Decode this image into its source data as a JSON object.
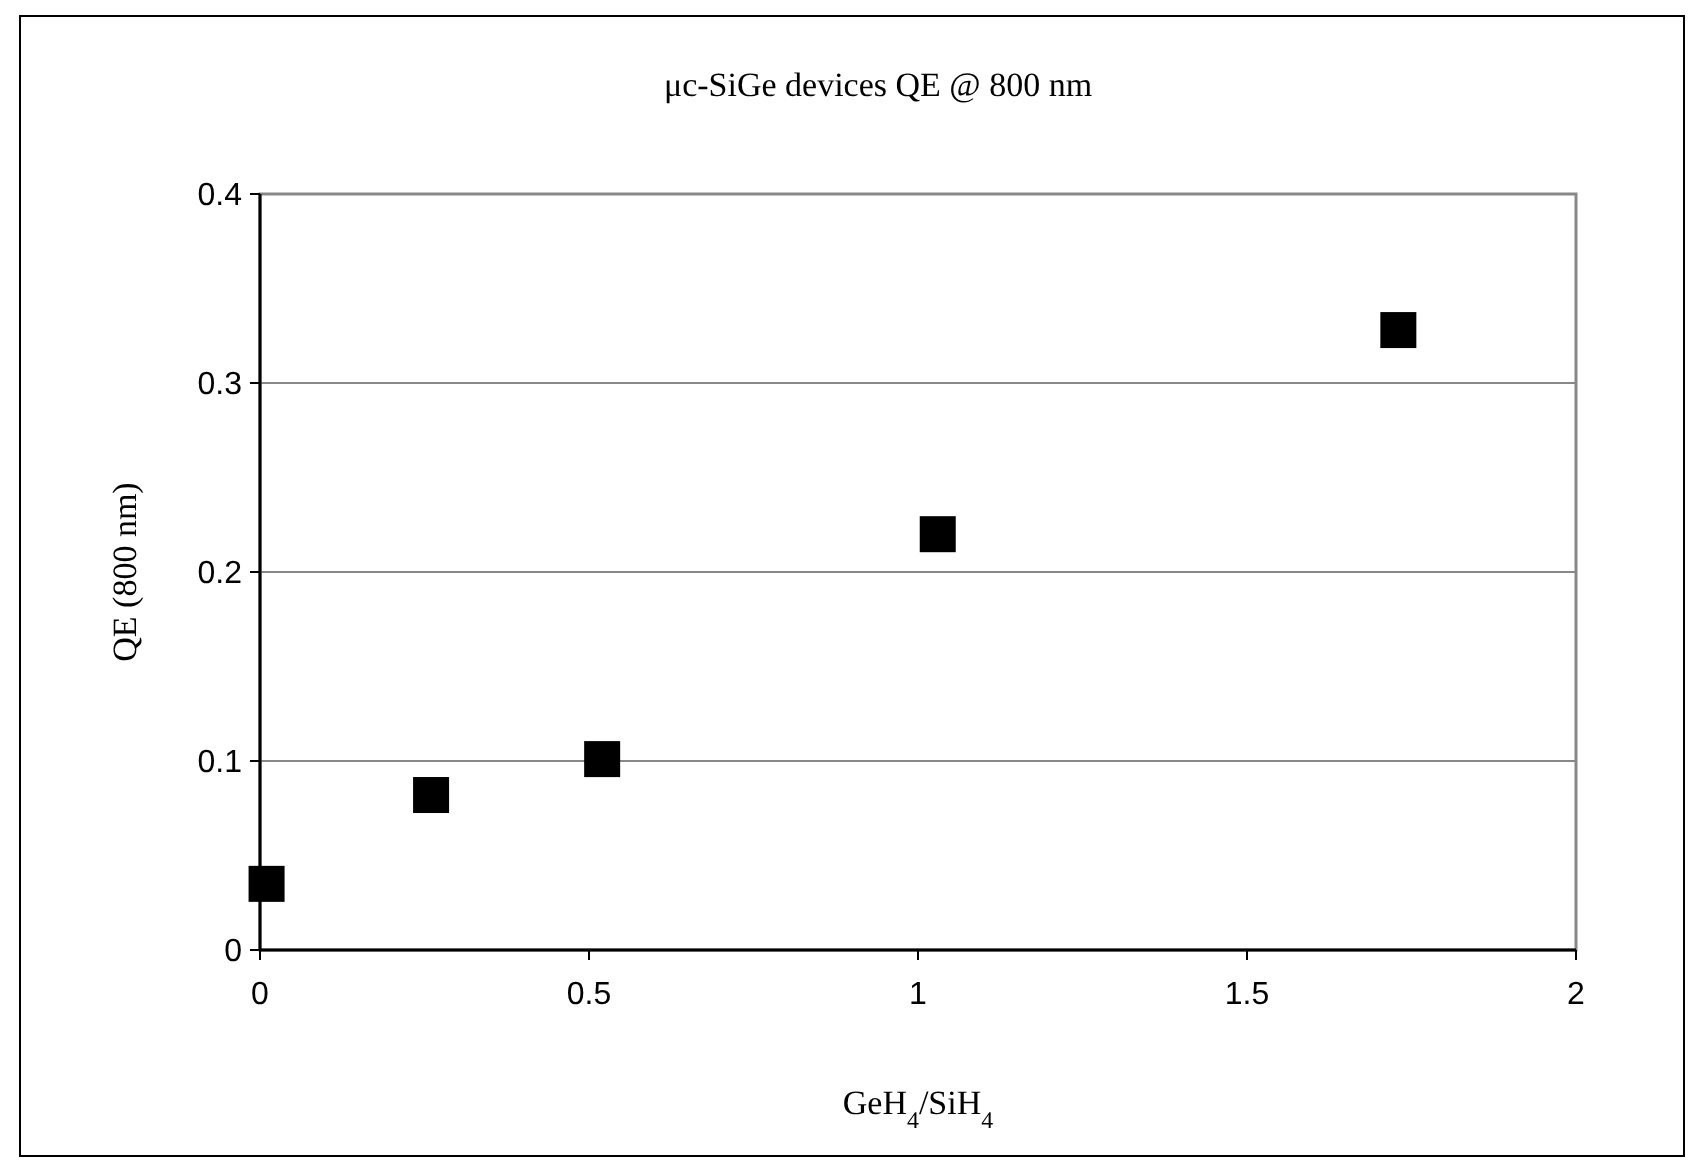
{
  "chart_data": {
    "type": "scatter",
    "title": "μc-SiGe devices QE @ 800 nm",
    "xlabel": "GeH$_{4}$/SiH$_{4}$",
    "ylabel": "QE (800 nm)",
    "x": [
      0.01,
      0.26,
      0.52,
      1.03,
      1.73
    ],
    "series": [
      {
        "color": "#000000",
        "values": [
          0.035,
          0.082,
          0.101,
          0.22,
          0.328
        ]
      }
    ],
    "xlim": [
      0,
      2
    ],
    "xticks": [
      0,
      0.5,
      1,
      1.5,
      2
    ],
    "ylim": [
      0,
      0.4
    ],
    "yticks": [
      0,
      0.1,
      0.2,
      0.3,
      0.4
    ],
    "grid": "y",
    "marker": "square"
  }
}
